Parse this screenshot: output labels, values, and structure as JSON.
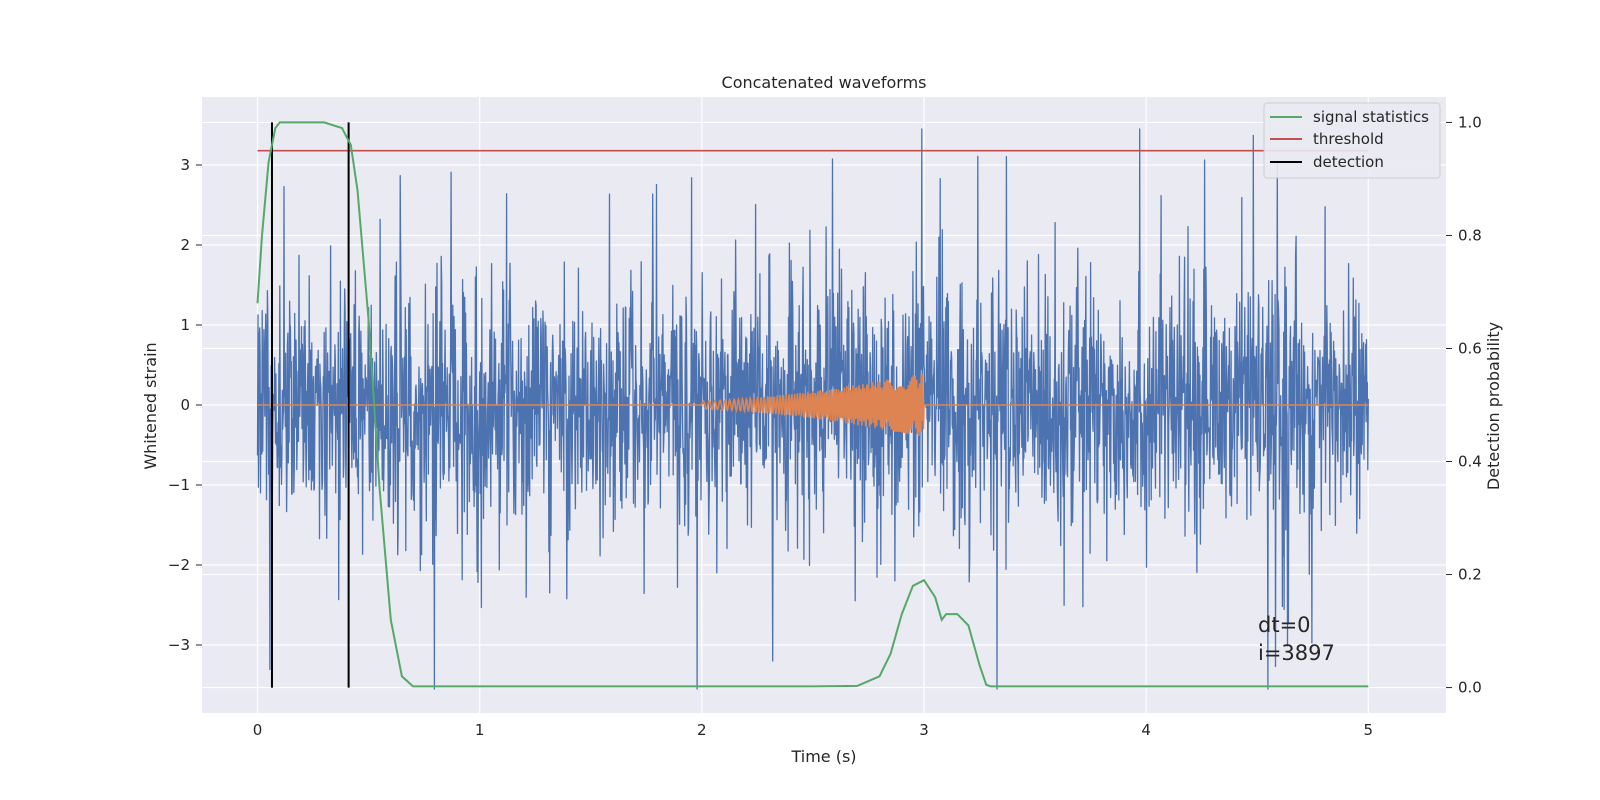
{
  "chart_data": {
    "type": "line",
    "title": "Concatenated waveforms",
    "xlabel": "Time (s)",
    "ylabel": "Whitened strain",
    "y2label": "Detection probability",
    "xlim": [
      -0.25,
      5.35
    ],
    "ylim": [
      -3.85,
      3.85
    ],
    "y2lim": [
      -0.045,
      1.045
    ],
    "xticks": [
      "0",
      "1",
      "2",
      "3",
      "4",
      "5"
    ],
    "yticks": [
      "3",
      "2",
      "1",
      "0",
      "−1",
      "−2",
      "−3"
    ],
    "y2ticks": [
      "1.0",
      "0.8",
      "0.6",
      "0.4",
      "0.2",
      "0.0"
    ],
    "grid": true,
    "legend": {
      "placement": "top-right",
      "entries": [
        "signal statistics",
        "threshold",
        "detection"
      ]
    },
    "annotation": {
      "line1": "dt=0",
      "line2": "i=3897"
    },
    "colors": {
      "strain": "#4c72b0",
      "template": "#dd8452",
      "statistic": "#55a868",
      "threshold": "#c44e52",
      "detection": "#000000",
      "background": "#eaeaf2"
    },
    "series": [
      {
        "name": "",
        "axis": "left",
        "description_type": "noisy whitened strain",
        "x_range": [
          0,
          5
        ],
        "envelope_typical": 1.8,
        "envelope_peak": 3.4
      },
      {
        "name": "",
        "axis": "left",
        "description_type": "injected chirp",
        "x_range": [
          2.0,
          3.0
        ],
        "start_amplitude": 0.05,
        "end_amplitude": 0.4
      },
      {
        "name": "signal statistics",
        "axis": "right",
        "x": [
          0,
          0.02,
          0.05,
          0.08,
          0.1,
          0.15,
          0.2,
          0.3,
          0.38,
          0.42,
          0.45,
          0.5,
          0.55,
          0.6,
          0.65,
          0.7,
          1.0,
          2.0,
          2.5,
          2.7,
          2.8,
          2.85,
          2.9,
          2.95,
          3.0,
          3.05,
          3.08,
          3.1,
          3.15,
          3.2,
          3.25,
          3.28,
          3.3,
          3.5,
          4.0,
          5.0
        ],
        "y": [
          0.68,
          0.8,
          0.93,
          0.99,
          1.0,
          1.0,
          1.0,
          1.0,
          0.99,
          0.96,
          0.88,
          0.65,
          0.35,
          0.12,
          0.02,
          0.002,
          0.002,
          0.002,
          0.002,
          0.003,
          0.02,
          0.06,
          0.13,
          0.18,
          0.19,
          0.16,
          0.12,
          0.13,
          0.13,
          0.11,
          0.04,
          0.005,
          0.002,
          0.002,
          0.002,
          0.002
        ]
      },
      {
        "name": "threshold",
        "axis": "right",
        "x": [
          0,
          5
        ],
        "y": [
          0.95,
          0.95
        ]
      },
      {
        "name": "detection",
        "axis": "right",
        "x": [
          0.065,
          0.41
        ],
        "y_span": [
          0,
          1
        ]
      }
    ]
  }
}
